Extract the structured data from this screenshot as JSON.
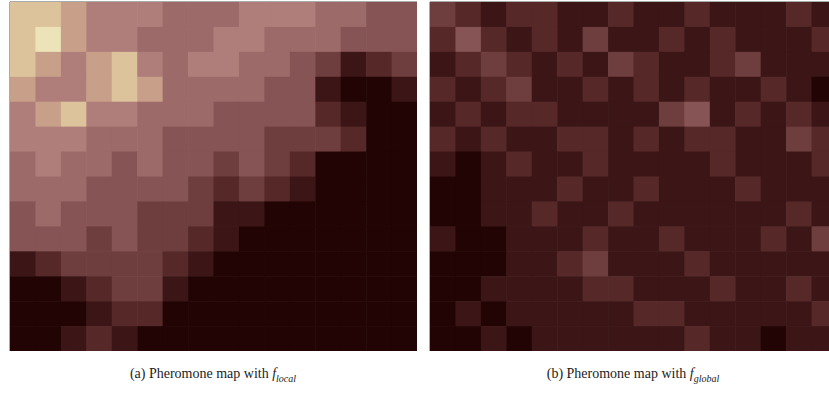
{
  "chart_data": [
    {
      "type": "heatmap",
      "caption": "(a) Pheromone map with",
      "symbol": "f",
      "subscript": "local",
      "tick_labels": false,
      "color_range": [
        0,
        9
      ],
      "cells": [
        [
          8,
          8,
          7,
          6,
          6,
          6,
          5,
          5,
          5,
          6,
          6,
          6,
          5,
          5,
          4,
          4
        ],
        [
          8,
          9,
          7,
          6,
          6,
          5,
          5,
          5,
          6,
          6,
          5,
          5,
          5,
          4,
          4,
          4
        ],
        [
          8,
          7,
          6,
          7,
          8,
          6,
          5,
          6,
          6,
          5,
          5,
          4,
          3,
          1,
          2,
          3
        ],
        [
          7,
          6,
          6,
          7,
          8,
          7,
          5,
          5,
          5,
          5,
          4,
          4,
          1,
          0,
          0,
          1
        ],
        [
          6,
          7,
          8,
          6,
          6,
          5,
          5,
          5,
          4,
          4,
          4,
          4,
          2,
          1,
          0,
          0
        ],
        [
          6,
          6,
          6,
          5,
          5,
          5,
          4,
          4,
          4,
          4,
          3,
          3,
          3,
          2,
          0,
          0
        ],
        [
          5,
          6,
          5,
          5,
          4,
          5,
          4,
          4,
          3,
          4,
          3,
          2,
          0,
          0,
          0,
          0
        ],
        [
          5,
          5,
          5,
          4,
          4,
          4,
          4,
          3,
          2,
          3,
          2,
          1,
          0,
          0,
          0,
          0
        ],
        [
          4,
          5,
          4,
          4,
          4,
          3,
          3,
          3,
          1,
          1,
          0,
          0,
          0,
          0,
          0,
          0
        ],
        [
          4,
          4,
          4,
          3,
          4,
          3,
          3,
          2,
          1,
          0,
          0,
          0,
          0,
          0,
          0,
          0
        ],
        [
          1,
          2,
          3,
          3,
          3,
          3,
          2,
          1,
          0,
          0,
          0,
          0,
          0,
          0,
          0,
          0
        ],
        [
          0,
          0,
          1,
          2,
          3,
          3,
          1,
          0,
          0,
          0,
          0,
          0,
          0,
          0,
          0,
          0
        ],
        [
          0,
          0,
          0,
          1,
          2,
          2,
          0,
          0,
          0,
          0,
          0,
          0,
          0,
          0,
          0,
          0
        ],
        [
          0,
          0,
          1,
          2,
          1,
          0,
          0,
          0,
          0,
          0,
          0,
          0,
          0,
          0,
          0,
          0
        ]
      ]
    },
    {
      "type": "heatmap",
      "caption": "(b) Pheromone map with",
      "symbol": "f",
      "subscript": "global",
      "tick_labels": false,
      "color_range": [
        0,
        9
      ],
      "cells": [
        [
          3,
          2,
          1,
          2,
          2,
          1,
          1,
          2,
          1,
          1,
          2,
          1,
          1,
          1,
          2,
          1
        ],
        [
          2,
          4,
          2,
          1,
          2,
          1,
          3,
          1,
          1,
          2,
          1,
          2,
          1,
          1,
          1,
          2
        ],
        [
          1,
          2,
          3,
          2,
          1,
          2,
          1,
          3,
          2,
          1,
          1,
          2,
          3,
          1,
          1,
          1
        ],
        [
          2,
          1,
          2,
          3,
          1,
          1,
          2,
          1,
          2,
          1,
          2,
          1,
          1,
          2,
          1,
          0
        ],
        [
          1,
          2,
          1,
          2,
          2,
          1,
          1,
          1,
          1,
          3,
          4,
          1,
          2,
          1,
          2,
          1
        ],
        [
          2,
          1,
          2,
          1,
          1,
          2,
          2,
          1,
          2,
          1,
          2,
          2,
          1,
          1,
          3,
          2
        ],
        [
          1,
          0,
          1,
          2,
          1,
          1,
          2,
          1,
          1,
          1,
          1,
          2,
          1,
          1,
          1,
          2
        ],
        [
          0,
          0,
          1,
          1,
          1,
          2,
          1,
          1,
          2,
          1,
          1,
          1,
          2,
          1,
          1,
          1
        ],
        [
          0,
          0,
          1,
          1,
          2,
          1,
          1,
          2,
          1,
          1,
          1,
          1,
          1,
          1,
          2,
          1
        ],
        [
          1,
          0,
          0,
          1,
          1,
          1,
          2,
          1,
          1,
          2,
          1,
          1,
          1,
          2,
          1,
          3
        ],
        [
          0,
          0,
          0,
          1,
          1,
          2,
          3,
          1,
          1,
          1,
          2,
          1,
          1,
          1,
          1,
          1
        ],
        [
          0,
          0,
          1,
          1,
          1,
          1,
          2,
          2,
          1,
          1,
          1,
          2,
          1,
          1,
          2,
          1
        ],
        [
          0,
          1,
          0,
          1,
          1,
          1,
          1,
          1,
          2,
          2,
          1,
          1,
          1,
          1,
          1,
          2
        ],
        [
          0,
          0,
          1,
          0,
          1,
          1,
          1,
          1,
          1,
          1,
          2,
          1,
          1,
          0,
          1,
          1
        ]
      ]
    }
  ]
}
